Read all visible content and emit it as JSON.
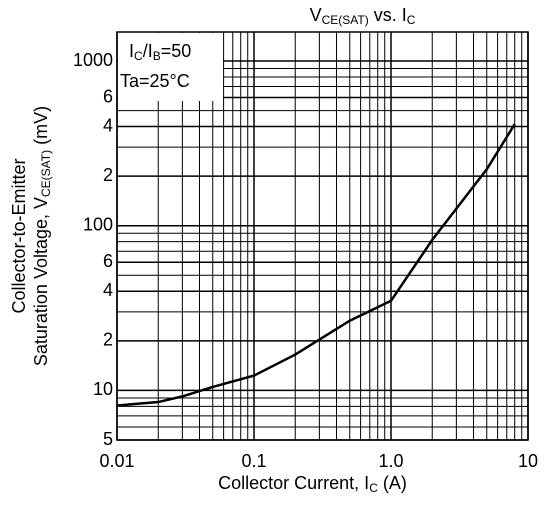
{
  "chart_data": {
    "type": "line",
    "title": [
      "V",
      "CE(SAT)",
      " vs. I",
      "C"
    ],
    "xlabel": [
      "Collector Current, I",
      "C",
      " (A)"
    ],
    "ylabel": [
      [
        "Collector-to-Emitter"
      ],
      [
        "Saturation Voltage, V",
        "CE(SAT)",
        " (mV)"
      ]
    ],
    "annotations": [
      [
        "I",
        "C",
        "/I",
        "B",
        "=50"
      ],
      [
        "Ta=25°C"
      ]
    ],
    "log_x": true,
    "log_y": true,
    "grid": true,
    "xlim": [
      0.01,
      10
    ],
    "ylim": [
      5,
      1500
    ],
    "xticks": [
      0.01,
      0.1,
      {
        "value": 1,
        "label": "1.0"
      },
      10
    ],
    "yticks": [
      {
        "value": 5,
        "label": "5"
      },
      10,
      {
        "value": 20,
        "label": "2"
      },
      {
        "value": 40,
        "label": "4"
      },
      {
        "value": 60,
        "label": "6"
      },
      100,
      {
        "value": 200,
        "label": "2"
      },
      {
        "value": 400,
        "label": "4"
      },
      {
        "value": 600,
        "label": "6"
      },
      1000
    ],
    "xgrid": [
      0.02,
      0.03,
      0.04,
      0.05,
      0.06,
      0.07,
      0.08,
      0.09,
      0.2,
      0.3,
      0.4,
      0.5,
      0.6,
      0.7,
      0.8,
      0.9,
      2,
      3,
      4,
      5,
      6,
      7,
      8,
      9
    ],
    "ygrid": [
      6,
      7,
      8,
      9,
      30,
      50,
      70,
      80,
      90,
      300,
      500,
      700,
      800,
      900
    ],
    "x": [
      0.01,
      0.02,
      0.03,
      0.05,
      0.1,
      0.2,
      0.5,
      1,
      2,
      5,
      8
    ],
    "series": [
      {
        "color": "#000000",
        "values": [
          8.1,
          8.5,
          9.2,
          10.5,
          12.3,
          16.5,
          26.5,
          35,
          82,
          220,
          414
        ]
      }
    ]
  }
}
